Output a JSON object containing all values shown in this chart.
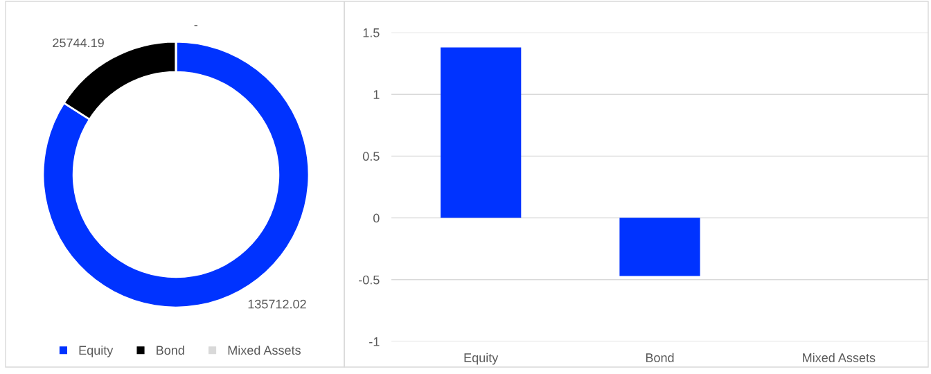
{
  "chart_data": [
    {
      "type": "donut",
      "categories": [
        "Equity",
        "Bond",
        "Mixed Assets"
      ],
      "values": [
        135712.02,
        25744.19,
        0
      ],
      "colors": [
        "#0033ff",
        "#000000",
        "#d9d9d9"
      ],
      "value_labels": [
        "135712.02",
        "25744.19",
        "-"
      ],
      "legend": "bottom"
    },
    {
      "type": "bar",
      "categories": [
        "Equity",
        "Bond",
        "Mixed Assets"
      ],
      "values": [
        1.38,
        -0.47,
        null
      ],
      "color": "#0033ff",
      "ylim": [
        -1,
        1.5
      ],
      "yticks": [
        -1,
        -0.5,
        0,
        0.5,
        1,
        1.5
      ],
      "grid": "y"
    }
  ]
}
